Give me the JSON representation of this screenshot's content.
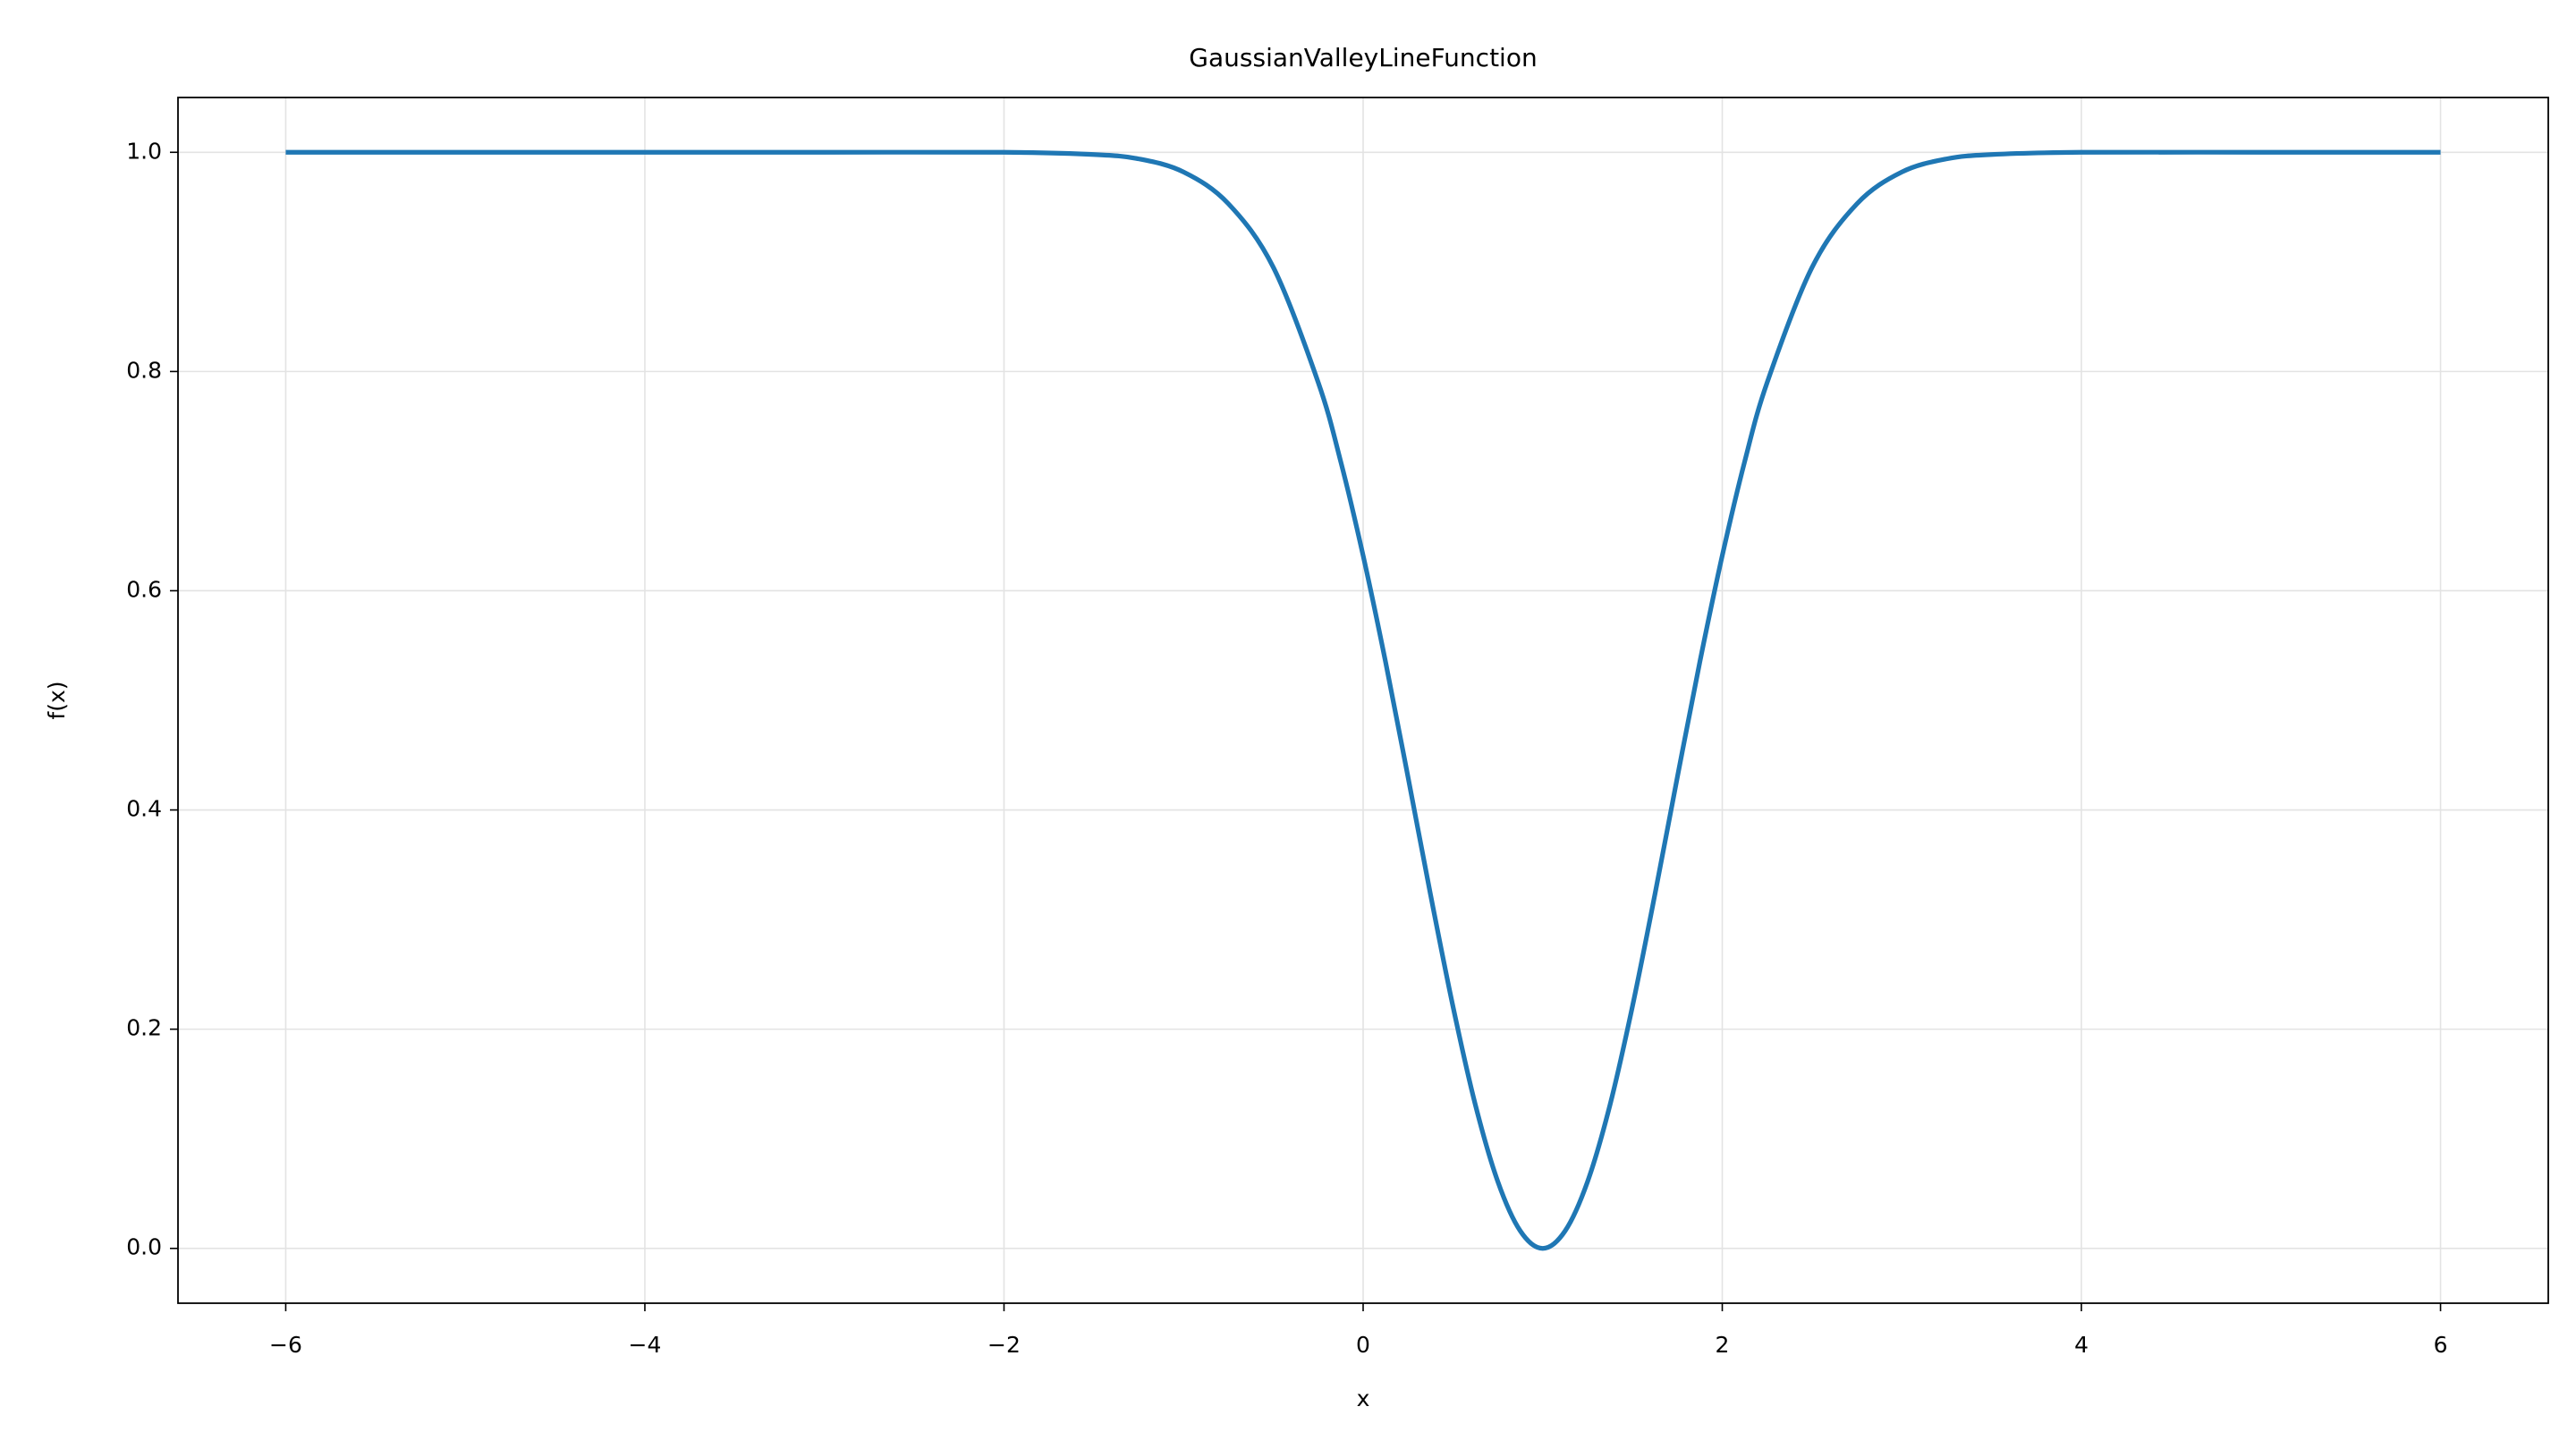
{
  "chart_data": {
    "type": "line",
    "title": "GaussianValleyLineFunction",
    "xlabel": "x",
    "ylabel": "f(x)",
    "x": [
      -6,
      -5,
      -4,
      -3,
      -2,
      -1.5,
      -1.25,
      -1,
      -0.75,
      -0.5,
      -0.25,
      -0.125,
      0,
      0.125,
      0.25,
      0.375,
      0.5,
      0.625,
      0.75,
      0.875,
      1,
      1.125,
      1.25,
      1.375,
      1.5,
      1.625,
      1.75,
      1.875,
      2,
      2.125,
      2.25,
      2.5,
      2.75,
      3,
      3.25,
      3.5,
      4,
      5,
      6
    ],
    "series": [
      {
        "color": "#1f77b4",
        "values": [
          1,
          1,
          1,
          1,
          1,
          0.998,
          0.994,
          0.982,
          0.953,
          0.895,
          0.79,
          0.718,
          0.632,
          0.535,
          0.43,
          0.323,
          0.221,
          0.131,
          0.061,
          0.016,
          0,
          0.016,
          0.061,
          0.131,
          0.221,
          0.323,
          0.43,
          0.535,
          0.632,
          0.718,
          0.79,
          0.895,
          0.953,
          0.982,
          0.994,
          0.998,
          1,
          1,
          1
        ]
      }
    ],
    "xlim": [
      -6.6,
      6.6
    ],
    "ylim": [
      -0.05,
      1.05
    ],
    "xticks": [
      {
        "value": -6,
        "label": "−6"
      },
      {
        "value": -4,
        "label": "−4"
      },
      {
        "value": -2,
        "label": "−2"
      },
      0,
      2,
      4,
      6
    ],
    "yticks": [
      {
        "value": 0,
        "label": "0.0"
      },
      0.2,
      0.4,
      0.6,
      0.8,
      {
        "value": 1,
        "label": "1.0"
      }
    ],
    "grid": true
  }
}
